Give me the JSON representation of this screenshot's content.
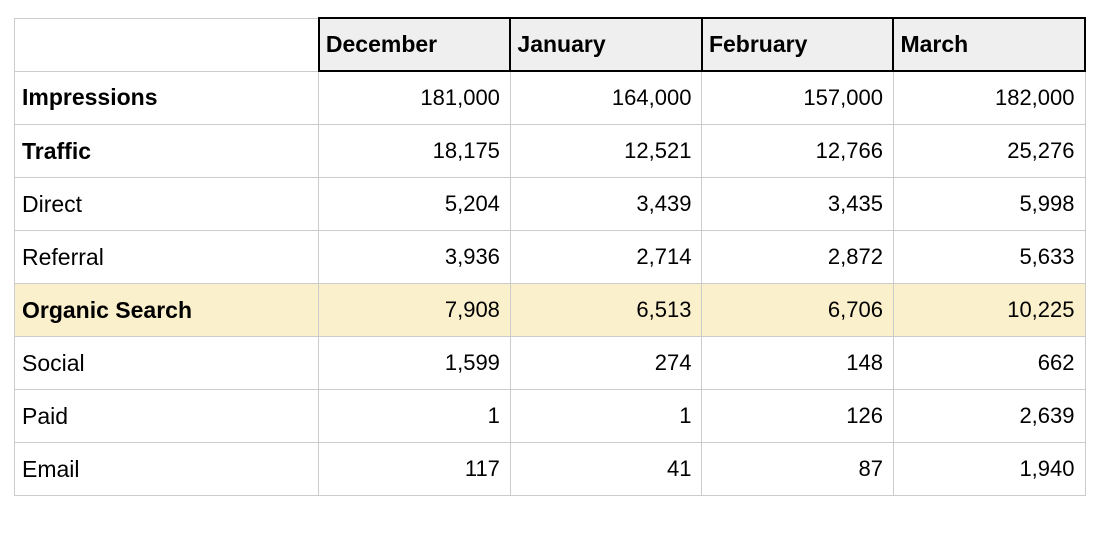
{
  "table": {
    "columns": [
      "",
      "December",
      "January",
      "February",
      "March"
    ],
    "rows": [
      {
        "label": "Impressions",
        "bold": true,
        "highlight": false,
        "values": [
          "181,000",
          "164,000",
          "157,000",
          "182,000"
        ]
      },
      {
        "label": "Traffic",
        "bold": true,
        "highlight": false,
        "values": [
          "18,175",
          "12,521",
          "12,766",
          "25,276"
        ]
      },
      {
        "label": "Direct",
        "bold": false,
        "highlight": false,
        "values": [
          "5,204",
          "3,439",
          "3,435",
          "5,998"
        ]
      },
      {
        "label": "Referral",
        "bold": false,
        "highlight": false,
        "values": [
          "3,936",
          "2,714",
          "2,872",
          "5,633"
        ]
      },
      {
        "label": "Organic Search",
        "bold": true,
        "highlight": true,
        "values": [
          "7,908",
          "6,513",
          "6,706",
          "10,225"
        ]
      },
      {
        "label": "Social",
        "bold": false,
        "highlight": false,
        "values": [
          "1,599",
          "274",
          "148",
          "662"
        ]
      },
      {
        "label": "Paid",
        "bold": false,
        "highlight": false,
        "values": [
          "1",
          "1",
          "126",
          "2,639"
        ]
      },
      {
        "label": "Email",
        "bold": false,
        "highlight": false,
        "values": [
          "117",
          "41",
          "87",
          "1,940"
        ]
      }
    ],
    "colors": {
      "header_bg": "#efefef",
      "header_border": "#000000",
      "body_border": "#cccccc",
      "highlight_bg": "#fbf0cc",
      "text": "#000000"
    }
  },
  "chart_data": {
    "type": "table",
    "columns": [
      "",
      "December",
      "January",
      "February",
      "March"
    ],
    "rows": [
      [
        "Impressions",
        181000,
        164000,
        157000,
        182000
      ],
      [
        "Traffic",
        18175,
        12521,
        12766,
        25276
      ],
      [
        "Direct",
        5204,
        3439,
        3435,
        5998
      ],
      [
        "Referral",
        3936,
        2714,
        2872,
        5633
      ],
      [
        "Organic Search",
        7908,
        6513,
        6706,
        10225
      ],
      [
        "Social",
        1599,
        274,
        148,
        662
      ],
      [
        "Paid",
        1,
        1,
        126,
        2639
      ],
      [
        "Email",
        117,
        41,
        87,
        1940
      ]
    ],
    "highlighted_row": "Organic Search",
    "legend_position": "none",
    "grid": true
  }
}
